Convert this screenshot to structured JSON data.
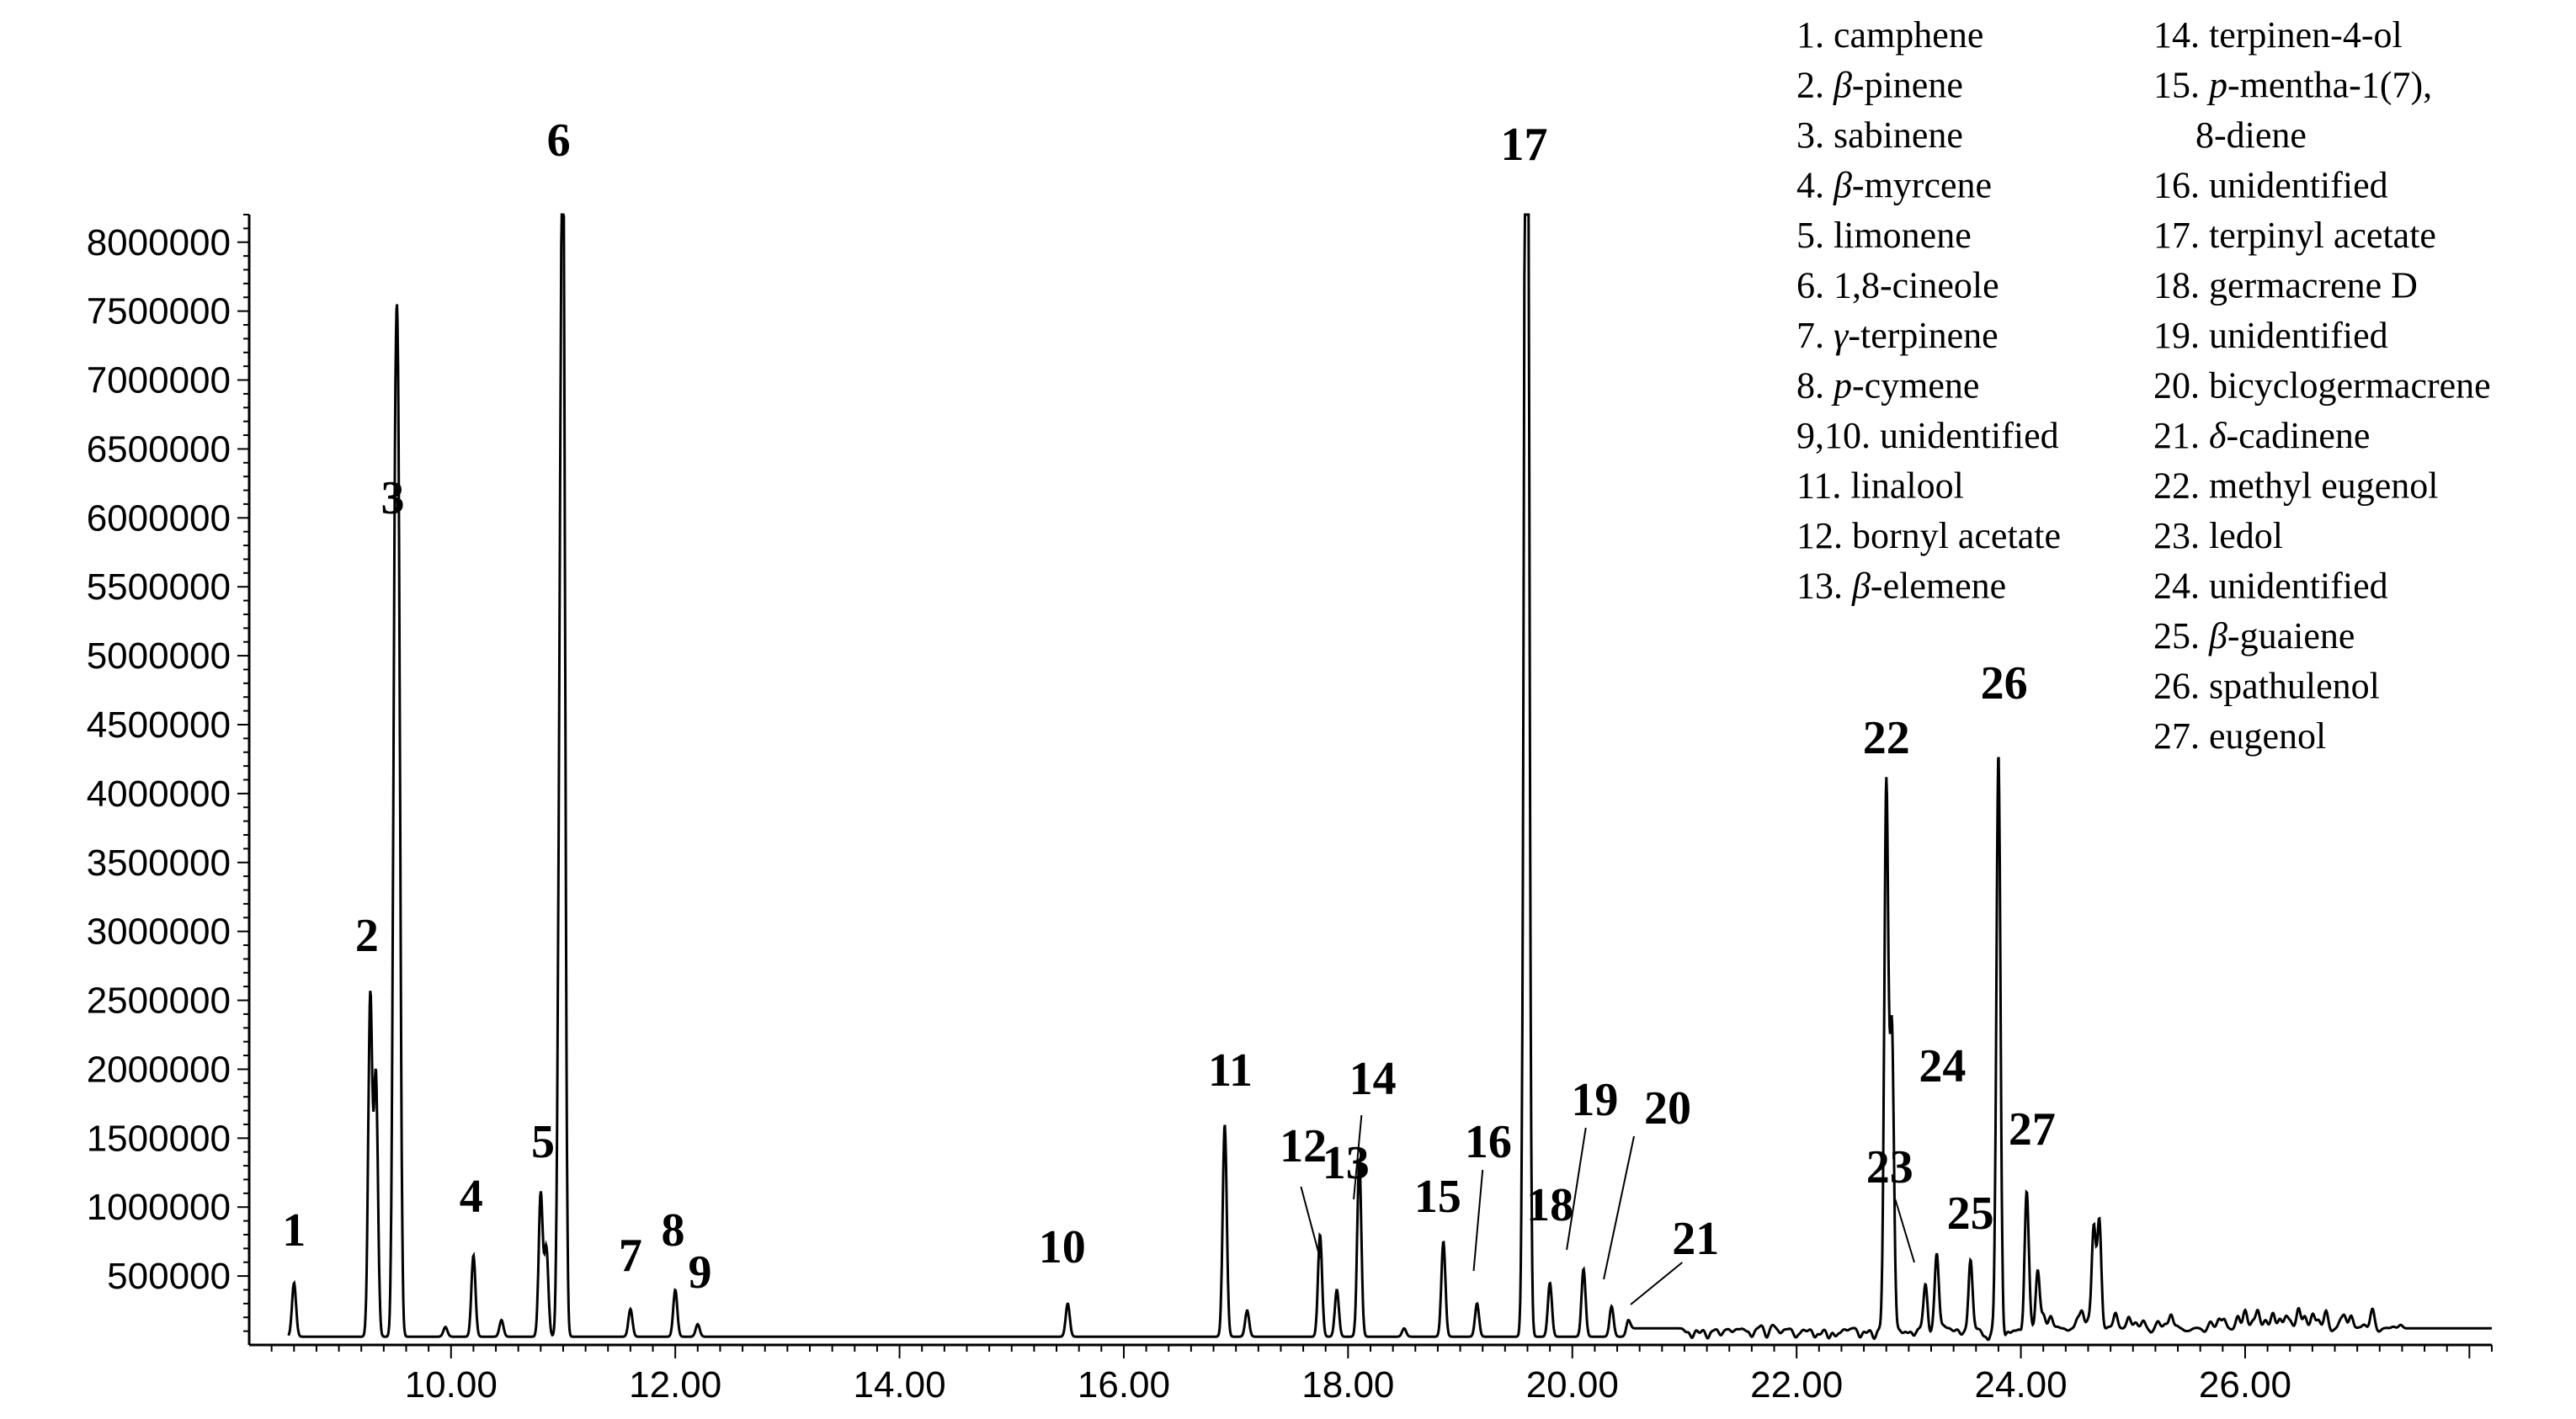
{
  "chart_data": {
    "type": "line",
    "title": "",
    "xlabel": "",
    "ylabel": "",
    "xlim": [
      8.2,
      28.2
    ],
    "ylim": [
      0,
      8200000
    ],
    "x_ticks": [
      "10.00",
      "12.00",
      "14.00",
      "16.00",
      "18.00",
      "20.00",
      "22.00",
      "24.00",
      "26.00"
    ],
    "y_ticks": [
      "500000",
      "1000000",
      "1500000",
      "2000000",
      "2500000",
      "3000000",
      "3500000",
      "4000000",
      "4500000",
      "5000000",
      "5500000",
      "6000000",
      "6500000",
      "7000000",
      "7500000",
      "8000000"
    ],
    "baseline": 120000,
    "peaks": [
      {
        "label": "1",
        "x": 8.6,
        "y": 450000
      },
      {
        "label": "",
        "x": 9.28,
        "y": 2530000
      },
      {
        "label": "2",
        "x": 9.33,
        "y": 1950000
      },
      {
        "label": "3",
        "x": 9.53,
        "y": 5600000
      },
      {
        "label": "",
        "x": 9.5,
        "y": 5100000
      },
      {
        "label": "",
        "x": 9.95,
        "y": 130000
      },
      {
        "label": "4",
        "x": 10.2,
        "y": 650000
      },
      {
        "label": "",
        "x": 10.45,
        "y": 180000
      },
      {
        "label": "5",
        "x": 10.8,
        "y": 1100000
      },
      {
        "label": "",
        "x": 10.85,
        "y": 700000
      },
      {
        "label": "6",
        "x": 11.0,
        "y": 8200000
      },
      {
        "label": "",
        "x": 10.97,
        "y": 3600000
      },
      {
        "label": "7",
        "x": 11.6,
        "y": 260000
      },
      {
        "label": "8",
        "x": 12.0,
        "y": 400000
      },
      {
        "label": "9",
        "x": 12.2,
        "y": 150000
      },
      {
        "label": "10",
        "x": 15.5,
        "y": 300000
      },
      {
        "label": "11",
        "x": 16.9,
        "y": 1600000
      },
      {
        "label": "",
        "x": 17.1,
        "y": 250000
      },
      {
        "label": "12",
        "x": 17.75,
        "y": 800000
      },
      {
        "label": "13",
        "x": 17.9,
        "y": 400000
      },
      {
        "label": "14",
        "x": 18.1,
        "y": 1350000
      },
      {
        "label": "",
        "x": 18.5,
        "y": 120000
      },
      {
        "label": "15",
        "x": 18.85,
        "y": 750000
      },
      {
        "label": "16",
        "x": 19.15,
        "y": 300000
      },
      {
        "label": "17",
        "x": 19.6,
        "y": 8200000
      },
      {
        "label": "",
        "x": 19.58,
        "y": 5600000
      },
      {
        "label": "18",
        "x": 19.8,
        "y": 450000
      },
      {
        "label": "19",
        "x": 20.1,
        "y": 550000
      },
      {
        "label": "20",
        "x": 20.35,
        "y": 280000
      },
      {
        "label": "21",
        "x": 20.5,
        "y": 180000
      },
      {
        "label": "22",
        "x": 22.8,
        "y": 4050000
      },
      {
        "label": "",
        "x": 22.85,
        "y": 2300000
      },
      {
        "label": "23",
        "x": 23.15,
        "y": 450000
      },
      {
        "label": "24",
        "x": 23.25,
        "y": 650000
      },
      {
        "label": "25",
        "x": 23.55,
        "y": 650000
      },
      {
        "label": "26",
        "x": 23.8,
        "y": 4300000
      },
      {
        "label": "27",
        "x": 24.05,
        "y": 1050000
      },
      {
        "label": "",
        "x": 24.15,
        "y": 550000
      },
      {
        "label": "",
        "x": 24.65,
        "y": 850000
      },
      {
        "label": "",
        "x": 24.7,
        "y": 900000
      }
    ],
    "legend_left": [
      "1. camphene",
      "2. β-pinene",
      "3. sabinene",
      "4. β-myrcene",
      "5. limonene",
      "6. 1,8-cineole",
      "7. γ-terpinene",
      "8. p-cymene",
      "9,10.  unidentified",
      "11. linalool",
      "12. bornyl acetate",
      "13. β-elemene"
    ],
    "legend_right": [
      "14. terpinen-4-ol",
      "15. p-mentha-1(7),",
      "8-diene",
      "16. unidentified",
      "17. terpinyl acetate",
      "18. germacrene D",
      "19. unidentified",
      "20. bicyclogermacrene",
      "21. δ-cadinene",
      "22. methyl eugenol",
      "23. ledol",
      "24. unidentified",
      "25. β-guaiene",
      "26. spathulenol",
      "27. eugenol"
    ],
    "line_color": "#000000",
    "grid": false,
    "legend_position": "top-right"
  }
}
